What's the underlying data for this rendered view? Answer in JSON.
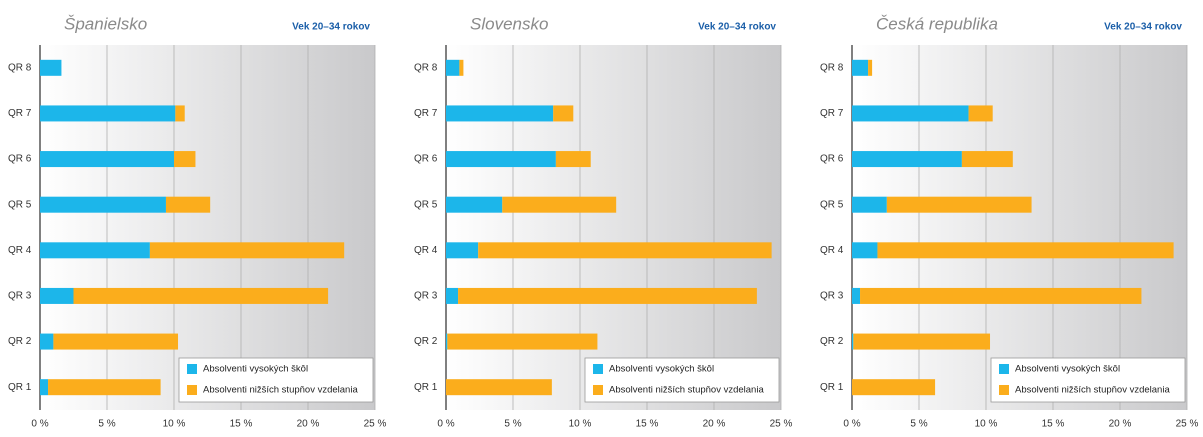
{
  "chart_data": [
    {
      "type": "bar",
      "orientation": "horizontal",
      "stacked": true,
      "title": "Španielsko",
      "subtitle": "Vek 20–34 rokov",
      "categories": [
        "QR 8",
        "QR 7",
        "QR 6",
        "QR 5",
        "QR 4",
        "QR 3",
        "QR 2",
        "QR 1"
      ],
      "series": [
        {
          "name": "Absolventi vysokých škôl",
          "color": "#1cb6ea",
          "values": [
            1.6,
            10.1,
            10.0,
            9.4,
            8.2,
            2.5,
            1.0,
            0.6
          ]
        },
        {
          "name": "Absolventi nižších stupňov vzdelania",
          "color": "#fbad1c",
          "values": [
            0,
            0.7,
            1.6,
            3.3,
            14.5,
            19.0,
            9.3,
            8.4
          ]
        }
      ],
      "xlim": [
        0,
        25
      ],
      "xticks": [
        {
          "value": 0,
          "label": "0 %"
        },
        {
          "value": 5,
          "label": "5 %"
        },
        {
          "value": 10,
          "label": "10 %"
        },
        {
          "value": 15,
          "label": "15 %"
        },
        {
          "value": 20,
          "label": "20 %"
        },
        {
          "value": 25,
          "label": "25 %"
        }
      ],
      "grid": true,
      "legend": "lower right"
    },
    {
      "type": "bar",
      "orientation": "horizontal",
      "stacked": true,
      "title": "Slovensko",
      "subtitle": "Vek 20–34 rokov",
      "categories": [
        "QR 8",
        "QR 7",
        "QR 6",
        "QR 5",
        "QR 4",
        "QR 3",
        "QR 2",
        "QR 1"
      ],
      "series": [
        {
          "name": "Absolventi vysokých škôl",
          "color": "#1cb6ea",
          "values": [
            1.0,
            8.0,
            8.2,
            4.2,
            2.4,
            0.9,
            0.1,
            0
          ]
        },
        {
          "name": "Absolventi nižších stupňov vzdelania",
          "color": "#fbad1c",
          "values": [
            0.3,
            1.5,
            2.6,
            8.5,
            21.9,
            22.3,
            11.2,
            7.9
          ]
        }
      ],
      "xlim": [
        0,
        25
      ],
      "xticks": [
        {
          "value": 0,
          "label": "0 %"
        },
        {
          "value": 5,
          "label": "5 %"
        },
        {
          "value": 10,
          "label": "10 %"
        },
        {
          "value": 15,
          "label": "15 %"
        },
        {
          "value": 20,
          "label": "20 %"
        },
        {
          "value": 25,
          "label": "25 %"
        }
      ],
      "grid": true,
      "legend": "lower right"
    },
    {
      "type": "bar",
      "orientation": "horizontal",
      "stacked": true,
      "title": "Česká republika",
      "subtitle": "Vek 20–34 rokov",
      "categories": [
        "QR 8",
        "QR 7",
        "QR 6",
        "QR 5",
        "QR 4",
        "QR 3",
        "QR 2",
        "QR 1"
      ],
      "series": [
        {
          "name": "Absolventi vysokých škôl",
          "color": "#1cb6ea",
          "values": [
            1.2,
            8.7,
            8.2,
            2.6,
            1.9,
            0.6,
            0.1,
            0
          ]
        },
        {
          "name": "Absolventi nižších stupňov vzdelania",
          "color": "#fbad1c",
          "values": [
            0.3,
            1.8,
            3.8,
            10.8,
            22.1,
            21.0,
            10.2,
            6.2
          ]
        }
      ],
      "xlim": [
        0,
        25
      ],
      "xticks": [
        {
          "value": 0,
          "label": "0 %"
        },
        {
          "value": 5,
          "label": "5 %"
        },
        {
          "value": 10,
          "label": "10 %"
        },
        {
          "value": 15,
          "label": "15 %"
        },
        {
          "value": 20,
          "label": "20 %"
        },
        {
          "value": 25,
          "label": "25 %"
        }
      ],
      "grid": true,
      "legend": "lower right"
    }
  ]
}
